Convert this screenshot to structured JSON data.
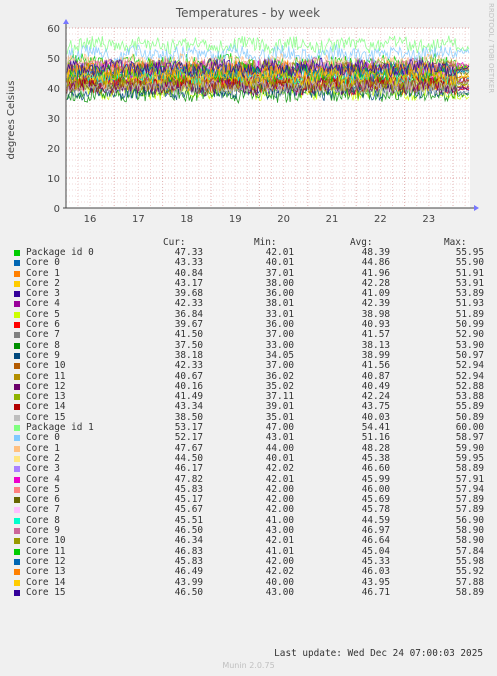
{
  "chart_data": {
    "type": "line",
    "title": "Temperatures - by week",
    "ylabel": "degrees Celsius",
    "xlabel": "",
    "ylim": [
      0,
      60
    ],
    "yticks": [
      0,
      10,
      20,
      30,
      40,
      50,
      60
    ],
    "x_day_labels": [
      "16",
      "17",
      "18",
      "19",
      "20",
      "21",
      "22",
      "23"
    ],
    "grid": true,
    "legend_headers": {
      "cur": "Cur:",
      "min": "Min:",
      "avg": "Avg:",
      "max": "Max:"
    },
    "series": [
      {
        "name": "Package id 0",
        "color": "#00cc00",
        "cur": "47.33",
        "min": "42.01",
        "avg": "48.39",
        "max": "55.95"
      },
      {
        "name": "Core 0",
        "color": "#0066b3",
        "cur": "43.33",
        "min": "40.01",
        "avg": "44.86",
        "max": "55.90"
      },
      {
        "name": "Core 1",
        "color": "#ff8000",
        "cur": "40.84",
        "min": "37.01",
        "avg": "41.96",
        "max": "51.91"
      },
      {
        "name": "Core 2",
        "color": "#ffcc00",
        "cur": "43.17",
        "min": "38.00",
        "avg": "42.28",
        "max": "53.91"
      },
      {
        "name": "Core 3",
        "color": "#330099",
        "cur": "39.68",
        "min": "36.00",
        "avg": "41.09",
        "max": "53.89"
      },
      {
        "name": "Core 4",
        "color": "#990099",
        "cur": "42.33",
        "min": "38.01",
        "avg": "42.39",
        "max": "51.93"
      },
      {
        "name": "Core 5",
        "color": "#ccff00",
        "cur": "36.84",
        "min": "33.01",
        "avg": "38.98",
        "max": "51.89"
      },
      {
        "name": "Core 6",
        "color": "#ff0000",
        "cur": "39.67",
        "min": "36.00",
        "avg": "40.93",
        "max": "50.99"
      },
      {
        "name": "Core 7",
        "color": "#808080",
        "cur": "41.50",
        "min": "37.00",
        "avg": "41.57",
        "max": "52.90"
      },
      {
        "name": "Core 8",
        "color": "#008f00",
        "cur": "37.50",
        "min": "33.00",
        "avg": "38.13",
        "max": "53.90"
      },
      {
        "name": "Core 9",
        "color": "#00487d",
        "cur": "38.18",
        "min": "34.05",
        "avg": "38.99",
        "max": "50.97"
      },
      {
        "name": "Core 10",
        "color": "#b35a00",
        "cur": "42.33",
        "min": "37.00",
        "avg": "41.56",
        "max": "52.94"
      },
      {
        "name": "Core 11",
        "color": "#b38f00",
        "cur": "40.67",
        "min": "36.02",
        "avg": "40.87",
        "max": "52.94"
      },
      {
        "name": "Core 12",
        "color": "#6b006b",
        "cur": "40.16",
        "min": "35.02",
        "avg": "40.49",
        "max": "52.88"
      },
      {
        "name": "Core 13",
        "color": "#8fb300",
        "cur": "41.49",
        "min": "37.11",
        "avg": "42.24",
        "max": "53.88"
      },
      {
        "name": "Core 14",
        "color": "#b30000",
        "cur": "43.34",
        "min": "39.01",
        "avg": "43.75",
        "max": "55.89"
      },
      {
        "name": "Core 15",
        "color": "#bebebe",
        "cur": "38.50",
        "min": "35.01",
        "avg": "40.03",
        "max": "50.89"
      },
      {
        "name": "Package id 1",
        "color": "#80ff80",
        "cur": "53.17",
        "min": "47.00",
        "avg": "54.41",
        "max": "60.00"
      },
      {
        "name": "Core 0",
        "color": "#80c9ff",
        "cur": "52.17",
        "min": "43.01",
        "avg": "51.16",
        "max": "58.97"
      },
      {
        "name": "Core 1",
        "color": "#ffc080",
        "cur": "47.67",
        "min": "44.00",
        "avg": "48.28",
        "max": "59.90"
      },
      {
        "name": "Core 2",
        "color": "#ffe680",
        "cur": "44.50",
        "min": "40.01",
        "avg": "45.38",
        "max": "59.95"
      },
      {
        "name": "Core 3",
        "color": "#aa80ff",
        "cur": "46.17",
        "min": "42.02",
        "avg": "46.60",
        "max": "58.89"
      },
      {
        "name": "Core 4",
        "color": "#ee00cc",
        "cur": "47.82",
        "min": "42.01",
        "avg": "45.99",
        "max": "57.91"
      },
      {
        "name": "Core 5",
        "color": "#ff8080",
        "cur": "45.83",
        "min": "42.00",
        "avg": "46.00",
        "max": "57.94"
      },
      {
        "name": "Core 6",
        "color": "#666600",
        "cur": "45.17",
        "min": "42.00",
        "avg": "45.69",
        "max": "57.89"
      },
      {
        "name": "Core 7",
        "color": "#ffbfff",
        "cur": "45.67",
        "min": "42.00",
        "avg": "45.78",
        "max": "57.89"
      },
      {
        "name": "Core 8",
        "color": "#00ffcc",
        "cur": "45.51",
        "min": "41.00",
        "avg": "44.59",
        "max": "56.90"
      },
      {
        "name": "Core 9",
        "color": "#cc6699",
        "cur": "46.50",
        "min": "43.00",
        "avg": "46.97",
        "max": "58.90"
      },
      {
        "name": "Core 10",
        "color": "#999900",
        "cur": "46.34",
        "min": "42.01",
        "avg": "46.64",
        "max": "58.90"
      },
      {
        "name": "Core 11",
        "color": "#00cc00",
        "cur": "46.83",
        "min": "41.01",
        "avg": "45.04",
        "max": "57.84"
      },
      {
        "name": "Core 12",
        "color": "#0066b3",
        "cur": "45.83",
        "min": "42.00",
        "avg": "45.33",
        "max": "55.98"
      },
      {
        "name": "Core 13",
        "color": "#ff8000",
        "cur": "46.49",
        "min": "42.02",
        "avg": "46.03",
        "max": "55.92"
      },
      {
        "name": "Core 14",
        "color": "#ffcc00",
        "cur": "43.99",
        "min": "40.00",
        "avg": "43.95",
        "max": "57.88"
      },
      {
        "name": "Core 15",
        "color": "#330099",
        "cur": "46.50",
        "min": "43.00",
        "avg": "46.71",
        "max": "58.89"
      }
    ]
  },
  "last_update": "Last update: Wed Dec 24 07:00:03 2025",
  "footer": "Munin 2.0.75",
  "side_label": "RRDTOOL / TOBI OETIKER"
}
